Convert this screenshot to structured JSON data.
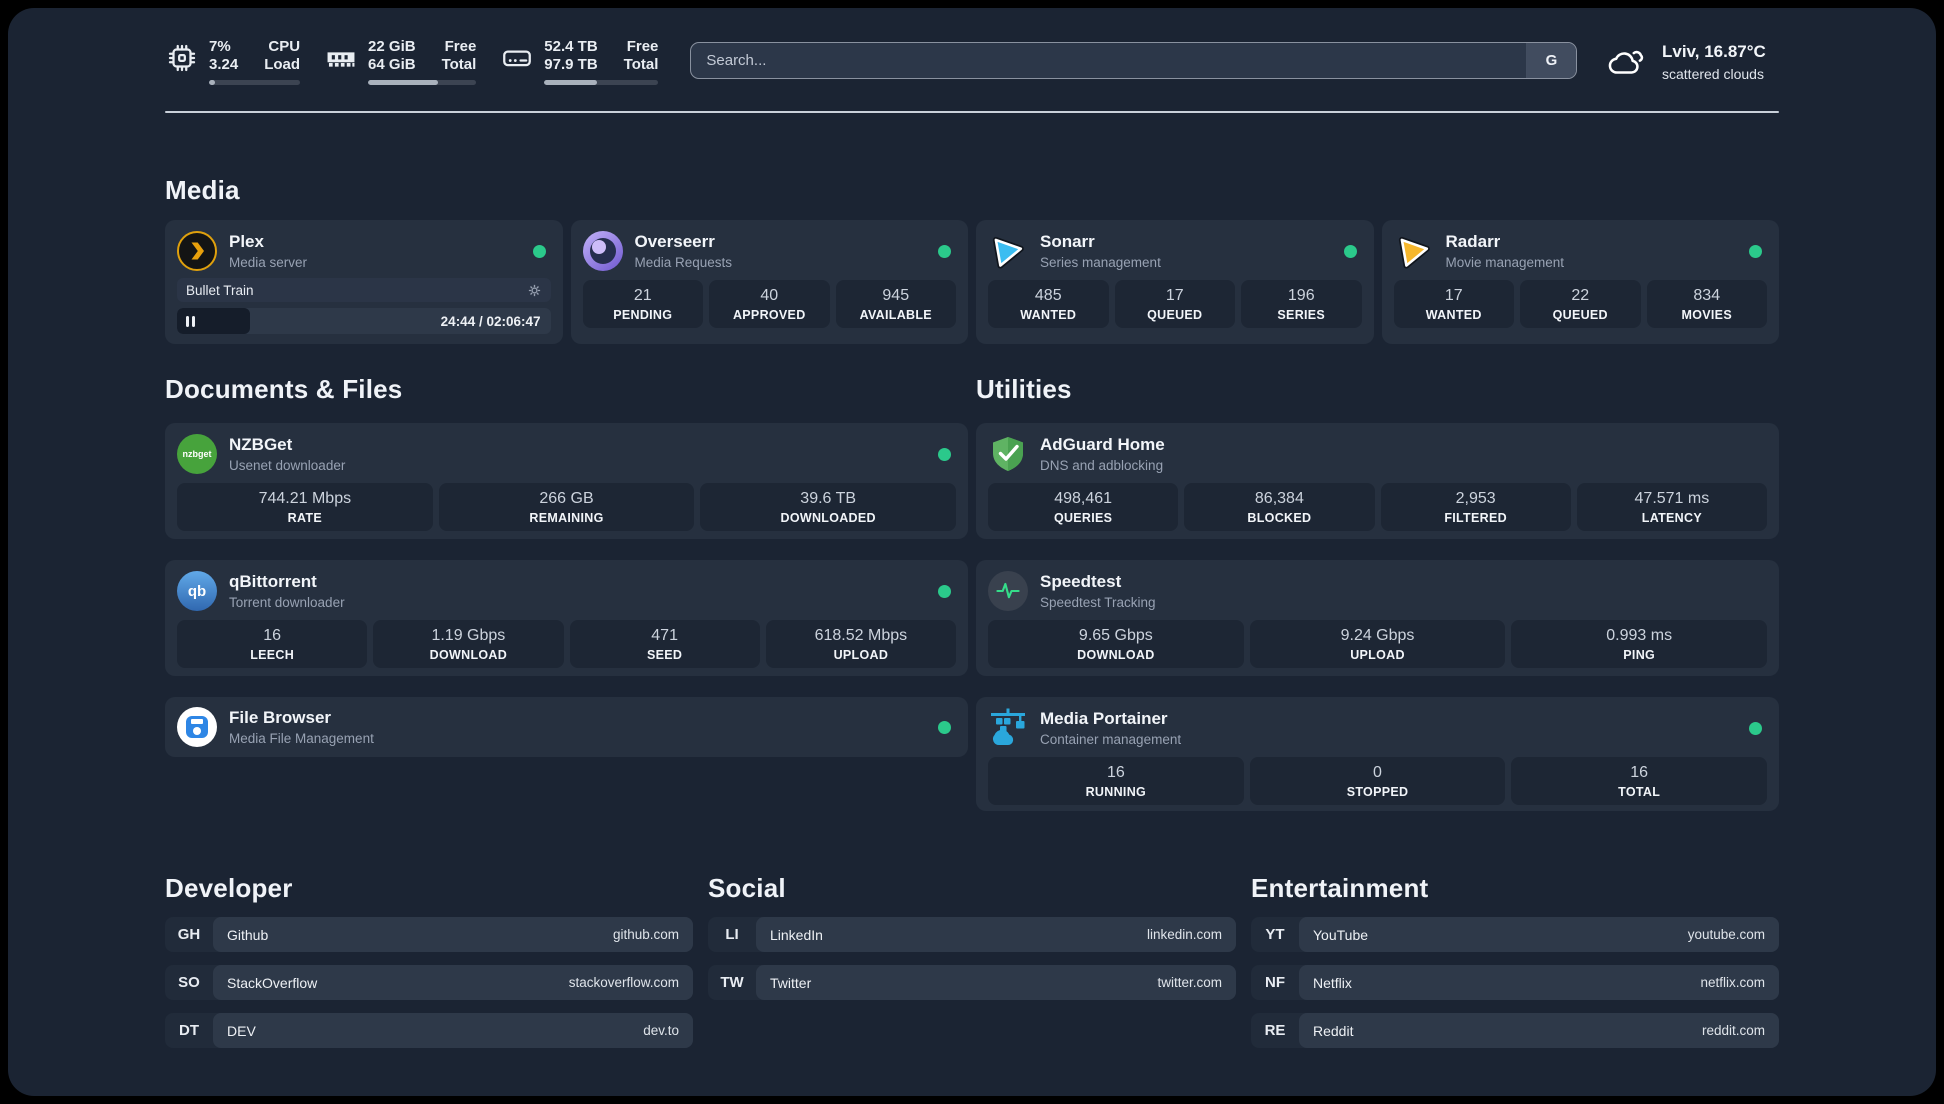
{
  "topbar": {
    "cpu": {
      "value_top": "7%",
      "value_bottom": "3.24",
      "label_top": "CPU",
      "label_bottom": "Load",
      "progress": 7
    },
    "ram": {
      "value_top": "22 GiB",
      "value_bottom": "64 GiB",
      "label_top": "Free",
      "label_bottom": "Total",
      "progress": 65
    },
    "disk": {
      "value_top": "52.4 TB",
      "value_bottom": "97.9 TB",
      "label_top": "Free",
      "label_bottom": "Total",
      "progress": 46
    },
    "search": {
      "placeholder": "Search...",
      "button": "G"
    },
    "weather": {
      "location_temp": "Lviv, 16.87°C",
      "condition": "scattered clouds"
    }
  },
  "sections": {
    "media": "Media",
    "documents": "Documents & Files",
    "utilities": "Utilities",
    "developer": "Developer",
    "social": "Social",
    "entertainment": "Entertainment"
  },
  "services": {
    "plex": {
      "title": "Plex",
      "subtitle": "Media server",
      "now_playing": "Bullet Train",
      "time": "24:44 / 02:06:47",
      "progress": 19.5
    },
    "overseerr": {
      "title": "Overseerr",
      "subtitle": "Media Requests",
      "stats": [
        {
          "value": "21",
          "label": "PENDING"
        },
        {
          "value": "40",
          "label": "APPROVED"
        },
        {
          "value": "945",
          "label": "AVAILABLE"
        }
      ]
    },
    "sonarr": {
      "title": "Sonarr",
      "subtitle": "Series management",
      "stats": [
        {
          "value": "485",
          "label": "WANTED"
        },
        {
          "value": "17",
          "label": "QUEUED"
        },
        {
          "value": "196",
          "label": "SERIES"
        }
      ]
    },
    "radarr": {
      "title": "Radarr",
      "subtitle": "Movie management",
      "stats": [
        {
          "value": "17",
          "label": "WANTED"
        },
        {
          "value": "22",
          "label": "QUEUED"
        },
        {
          "value": "834",
          "label": "MOVIES"
        }
      ]
    },
    "nzbget": {
      "title": "NZBGet",
      "subtitle": "Usenet downloader",
      "logo_text": "nzbget",
      "stats": [
        {
          "value": "744.21 Mbps",
          "label": "RATE"
        },
        {
          "value": "266 GB",
          "label": "REMAINING"
        },
        {
          "value": "39.6 TB",
          "label": "DOWNLOADED"
        }
      ]
    },
    "qbittorrent": {
      "title": "qBittorrent",
      "subtitle": "Torrent downloader",
      "logo_text": "qb",
      "stats": [
        {
          "value": "16",
          "label": "LEECH"
        },
        {
          "value": "1.19 Gbps",
          "label": "DOWNLOAD"
        },
        {
          "value": "471",
          "label": "SEED"
        },
        {
          "value": "618.52 Mbps",
          "label": "UPLOAD"
        }
      ]
    },
    "filebrowser": {
      "title": "File Browser",
      "subtitle": "Media File Management"
    },
    "adguard": {
      "title": "AdGuard Home",
      "subtitle": "DNS and adblocking",
      "stats": [
        {
          "value": "498,461",
          "label": "QUERIES"
        },
        {
          "value": "86,384",
          "label": "BLOCKED"
        },
        {
          "value": "2,953",
          "label": "FILTERED"
        },
        {
          "value": "47.571 ms",
          "label": "LATENCY"
        }
      ]
    },
    "speedtest": {
      "title": "Speedtest",
      "subtitle": "Speedtest Tracking",
      "stats": [
        {
          "value": "9.65 Gbps",
          "label": "DOWNLOAD"
        },
        {
          "value": "9.24 Gbps",
          "label": "UPLOAD"
        },
        {
          "value": "0.993 ms",
          "label": "PING"
        }
      ]
    },
    "portainer": {
      "title": "Media Portainer",
      "subtitle": "Container management",
      "stats": [
        {
          "value": "16",
          "label": "RUNNING"
        },
        {
          "value": "0",
          "label": "STOPPED"
        },
        {
          "value": "16",
          "label": "TOTAL"
        }
      ]
    }
  },
  "links": {
    "developer": [
      {
        "abbr": "GH",
        "name": "Github",
        "url": "github.com"
      },
      {
        "abbr": "SO",
        "name": "StackOverflow",
        "url": "stackoverflow.com"
      },
      {
        "abbr": "DT",
        "name": "DEV",
        "url": "dev.to"
      }
    ],
    "social": [
      {
        "abbr": "LI",
        "name": "LinkedIn",
        "url": "linkedin.com"
      },
      {
        "abbr": "TW",
        "name": "Twitter",
        "url": "twitter.com"
      }
    ],
    "entertainment": [
      {
        "abbr": "YT",
        "name": "YouTube",
        "url": "youtube.com"
      },
      {
        "abbr": "NF",
        "name": "Netflix",
        "url": "netflix.com"
      },
      {
        "abbr": "RE",
        "name": "Reddit",
        "url": "reddit.com"
      }
    ]
  },
  "colors": {
    "status_online": "#2bc98b",
    "panel_bg": "#1b2433",
    "card_bg": "#26303f"
  }
}
